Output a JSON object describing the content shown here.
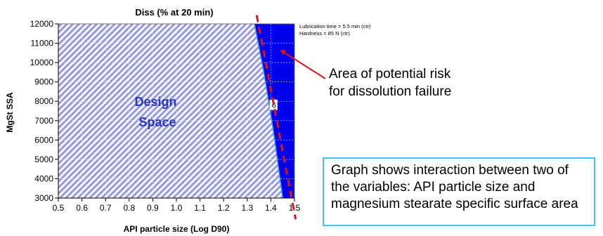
{
  "chart_data": {
    "type": "contour",
    "title": "Diss (% at 20 min)",
    "xlabel": "API particle size (Log D90)",
    "ylabel": "MgSt SSA",
    "xlim": [
      0.5,
      1.5
    ],
    "ylim": [
      3000,
      12000
    ],
    "xticks": [
      "0.5",
      "0.6",
      "0.7",
      "0.8",
      "0.9",
      "1.0",
      "1.1",
      "1.2",
      "1.3",
      "1.4",
      "1.5"
    ],
    "yticks": [
      "3000",
      "4000",
      "5000",
      "6000",
      "7000",
      "8000",
      "9000",
      "10000",
      "11000",
      "12000"
    ],
    "grid": true,
    "regions": [
      {
        "label": "Design Space",
        "fill": "hatched",
        "color": "#9999dd"
      },
      {
        "label": "Area of potential risk for dissolution failure",
        "fill": "solid",
        "color": "#0000ee"
      }
    ],
    "boundary": {
      "x": [
        1.33,
        1.37,
        1.41,
        1.45
      ],
      "y": [
        12000,
        9500,
        6500,
        3000
      ]
    },
    "contour_label": {
      "text": "6",
      "x": 1.41,
      "y": 7800
    },
    "edge_line": {
      "color": "#e0141e",
      "x": [
        1.34,
        1.505
      ],
      "y": [
        12450,
        1900
      ]
    }
  },
  "annotations": {
    "design_space": [
      "Design",
      "Space"
    ],
    "conditions": [
      "Lubrication time = 5.5 min (ctr)",
      "Hardness = 85 N (ctr)"
    ],
    "risk_label": [
      "Area of potential risk",
      "for dissolution failure"
    ],
    "note": "Graph shows interaction between two of the variables: API particle size and magnesium stearate specific surface area"
  },
  "colors": {
    "hatch": "#9999dd",
    "risk": "#0000ee",
    "boundary": "#33aadd",
    "dashed": "#e0141e",
    "design_text": "#2a36c8",
    "note_border": "#3cc8e6"
  }
}
